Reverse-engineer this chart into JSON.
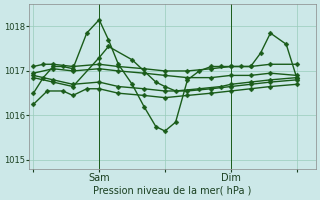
{
  "xlabel": "Pression niveau de la mer( hPa )",
  "ylim": [
    1014.8,
    1018.5
  ],
  "yticks": [
    1015,
    1016,
    1017,
    1018
  ],
  "bg_color": "#cce8e8",
  "grid_color": "#99ccbb",
  "line_color": "#1a5c1a",
  "xtick_labels": [
    "",
    "Sam",
    "",
    "Dim",
    ""
  ],
  "xtick_positions": [
    0,
    0.333,
    0.666,
    1.0,
    1.333
  ],
  "vline_positions": [
    0.333,
    1.0
  ],
  "marker_size": 2.5,
  "lines": [
    {
      "x": [
        0,
        0.05,
        0.1,
        0.15,
        0.2,
        0.27,
        0.333,
        0.38,
        0.43,
        0.5,
        0.56,
        0.62,
        0.666,
        0.72,
        0.78,
        0.84,
        0.9,
        0.95,
        1.0,
        1.05,
        1.1,
        1.15,
        1.2,
        1.28,
        1.333
      ],
      "y": [
        1016.5,
        1016.85,
        1017.1,
        1017.1,
        1017.05,
        1017.85,
        1018.15,
        1017.7,
        1017.15,
        1016.7,
        1016.2,
        1015.75,
        1015.65,
        1015.85,
        1016.8,
        1017.0,
        1017.1,
        1017.1,
        1017.1,
        1017.1,
        1017.1,
        1017.4,
        1017.85,
        1017.6,
        1016.85
      ],
      "marker": "D",
      "lw": 1.0
    },
    {
      "x": [
        0,
        0.05,
        0.1,
        0.2,
        0.333,
        0.43,
        0.56,
        0.666,
        0.78,
        0.9,
        1.0,
        1.1,
        1.2,
        1.333
      ],
      "y": [
        1017.1,
        1017.15,
        1017.15,
        1017.1,
        1017.15,
        1017.1,
        1017.05,
        1017.0,
        1017.0,
        1017.05,
        1017.1,
        1017.1,
        1017.15,
        1017.15
      ],
      "marker": "D",
      "lw": 1.0
    },
    {
      "x": [
        0,
        0.1,
        0.2,
        0.333,
        0.43,
        0.56,
        0.666,
        0.78,
        0.9,
        1.0,
        1.1,
        1.2,
        1.333
      ],
      "y": [
        1016.95,
        1017.05,
        1017.0,
        1017.05,
        1017.0,
        1016.95,
        1016.9,
        1016.85,
        1016.85,
        1016.9,
        1016.9,
        1016.95,
        1016.9
      ],
      "marker": "D",
      "lw": 1.0
    },
    {
      "x": [
        0,
        0.1,
        0.2,
        0.333,
        0.43,
        0.56,
        0.666,
        0.78,
        0.9,
        1.0,
        1.1,
        1.2,
        1.333
      ],
      "y": [
        1016.9,
        1016.8,
        1016.7,
        1016.75,
        1016.65,
        1016.6,
        1016.55,
        1016.55,
        1016.6,
        1016.65,
        1016.7,
        1016.75,
        1016.8
      ],
      "marker": "D",
      "lw": 1.0
    },
    {
      "x": [
        0,
        0.07,
        0.15,
        0.2,
        0.27,
        0.333,
        0.43,
        0.56,
        0.666,
        0.78,
        0.9,
        1.0,
        1.1,
        1.2,
        1.333
      ],
      "y": [
        1016.25,
        1016.55,
        1016.55,
        1016.45,
        1016.6,
        1016.6,
        1016.5,
        1016.45,
        1016.4,
        1016.45,
        1016.5,
        1016.55,
        1016.6,
        1016.65,
        1016.7
      ],
      "marker": "D",
      "lw": 1.0
    },
    {
      "x": [
        0,
        0.1,
        0.2,
        0.333,
        0.38,
        0.5,
        0.62,
        0.666,
        0.72,
        0.84,
        0.95,
        1.0,
        1.1,
        1.2,
        1.333
      ],
      "y": [
        1016.85,
        1016.75,
        1016.65,
        1017.3,
        1017.55,
        1017.25,
        1016.75,
        1016.65,
        1016.55,
        1016.6,
        1016.65,
        1016.7,
        1016.75,
        1016.8,
        1016.85
      ],
      "marker": "D",
      "lw": 1.0
    }
  ]
}
